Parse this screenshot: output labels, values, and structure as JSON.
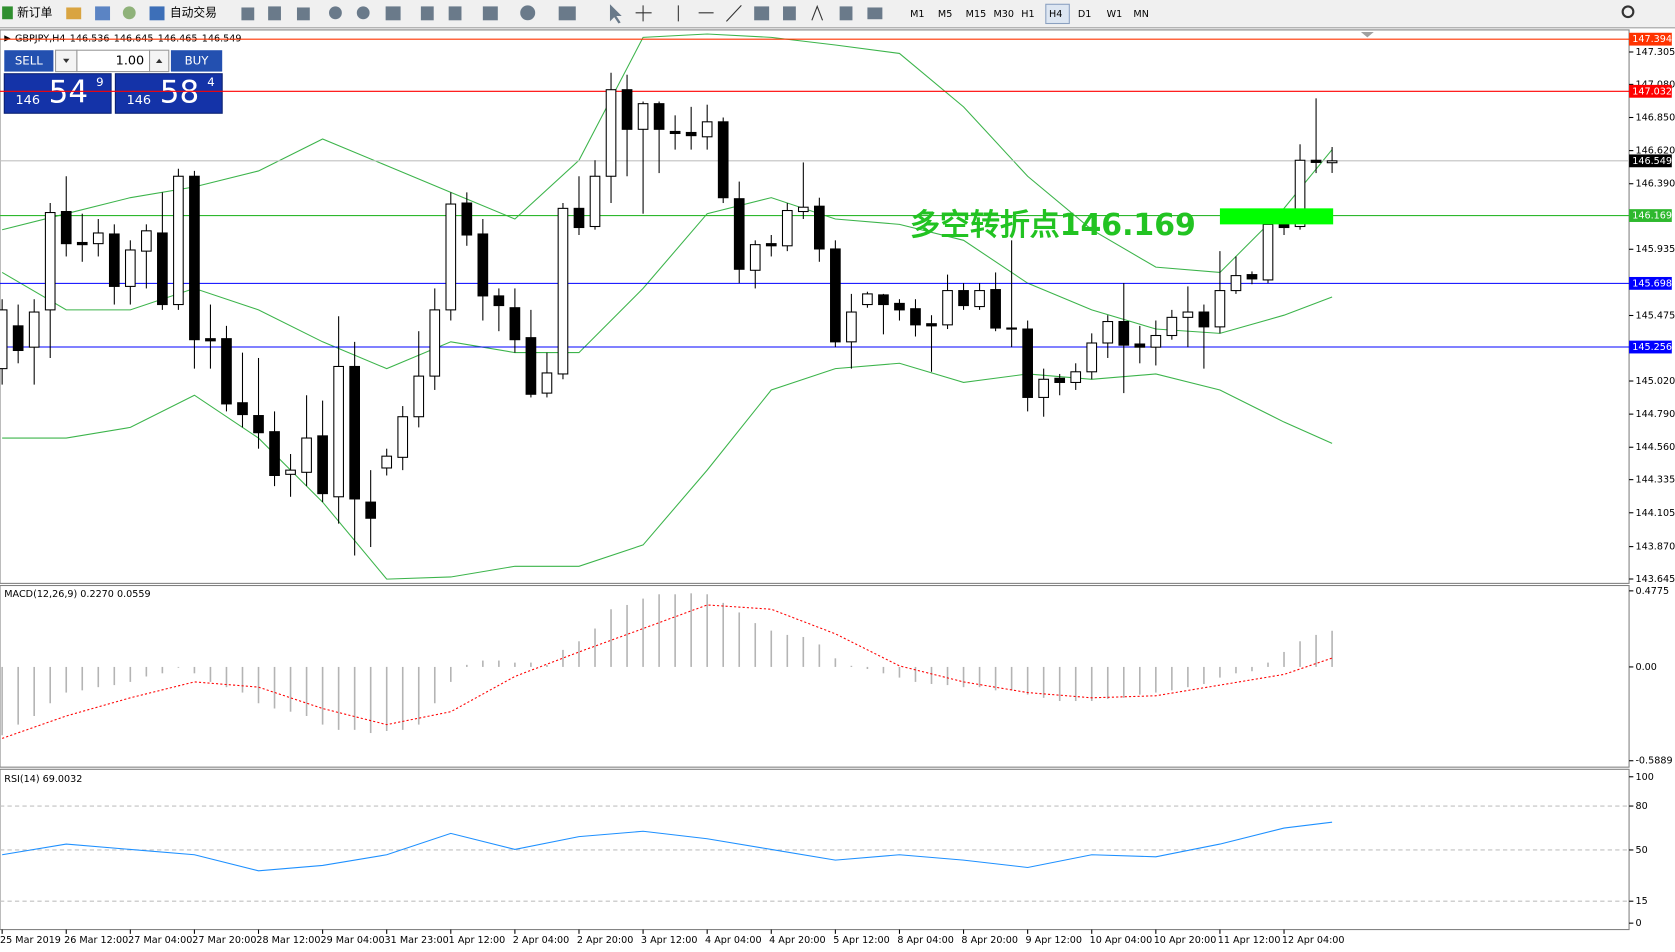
{
  "toolbar": {
    "new_order": "新订单",
    "autotrade": "自动交易",
    "timeframes": [
      "M1",
      "M5",
      "M15",
      "M30",
      "H1",
      "H4",
      "D1",
      "W1",
      "MN"
    ],
    "active_timeframe": "H4"
  },
  "trade_panel": {
    "sell": "SELL",
    "buy": "BUY",
    "lot": "1.00",
    "bid_big": "146",
    "bid_pips": "54",
    "bid_point": "9",
    "ask_big": "146",
    "ask_pips": "58",
    "ask_point": "4"
  },
  "chart_data": [
    {
      "type": "candlestick",
      "symbol": "GBPJPY,H4",
      "categories": [
        "25 Mar 2019",
        null,
        null,
        null,
        "26 Mar 12:00",
        null,
        null,
        null,
        "27 Mar 04:00",
        null,
        null,
        null,
        "27 Mar 20:00",
        null,
        null,
        null,
        "28 Mar 12:00",
        null,
        null,
        null,
        "29 Mar 04:00",
        null,
        null,
        null,
        "31 Mar 23:00",
        null,
        null,
        null,
        "1 Apr 12:00",
        null,
        null,
        null,
        "2 Apr 04:00",
        null,
        null,
        null,
        "2 Apr 20:00",
        null,
        null,
        null,
        "3 Apr 12:00",
        null,
        null,
        null,
        "4 Apr 04:00",
        null,
        null,
        null,
        "4 Apr 20:00",
        null,
        null,
        null,
        "5 Apr 12:00",
        null,
        null,
        null,
        "8 Apr 04:00",
        null,
        null,
        null,
        "8 Apr 20:00",
        null,
        null,
        null,
        "9 Apr 12:00",
        null,
        null,
        null,
        "10 Apr 04:00",
        null,
        null,
        null,
        "10 Apr 20:00",
        null,
        null,
        null,
        "11 Apr 12:00",
        null,
        null,
        null,
        "12 Apr 04:00",
        null,
        null,
        null
      ],
      "open": [
        145.106,
        145.403,
        145.255,
        145.514,
        146.197,
        145.982,
        145.974,
        146.041,
        145.677,
        145.922,
        146.048,
        145.551,
        146.442,
        145.314,
        145.314,
        144.869,
        144.78,
        144.668,
        144.372,
        144.386,
        144.639,
        144.216,
        145.121,
        144.179,
        144.416,
        144.49,
        144.772,
        145.054,
        145.514,
        146.256,
        146.041,
        145.611,
        145.529,
        145.321,
        144.936,
        145.069,
        146.219,
        146.093,
        146.442,
        147.043,
        146.768,
        146.946,
        146.753,
        146.746,
        146.716,
        146.82,
        146.286,
        145.789,
        145.974,
        145.959,
        146.197,
        146.234,
        145.937,
        145.292,
        145.551,
        145.618,
        145.559,
        145.522,
        145.418,
        145.41,
        145.648,
        145.537,
        145.655,
        145.388,
        145.381,
        144.906,
        145.039,
        145.01,
        145.084,
        145.284,
        145.433,
        145.277,
        145.255,
        145.336,
        145.462,
        145.499,
        145.396,
        145.648,
        145.759,
        145.722,
        146.108,
        146.093,
        146.553,
        146.536
      ],
      "high": [
        145.588,
        145.551,
        145.588,
        146.256,
        146.442,
        146.182,
        146.145,
        146.108,
        145.997,
        146.108,
        146.33,
        146.494,
        146.479,
        145.551,
        145.403,
        145.217,
        145.18,
        144.809,
        144.513,
        144.921,
        144.884,
        145.47,
        145.292,
        144.401,
        144.55,
        144.846,
        145.366,
        145.663,
        146.33,
        146.33,
        146.145,
        145.663,
        145.663,
        145.514,
        145.217,
        146.256,
        146.442,
        146.553,
        147.161,
        147.147,
        146.961,
        146.961,
        146.865,
        146.924,
        146.939,
        146.85,
        146.405,
        145.997,
        146.034,
        146.256,
        146.538,
        146.293,
        145.997,
        145.625,
        145.64,
        145.625,
        145.588,
        145.588,
        145.477,
        145.759,
        145.7,
        145.7,
        145.774,
        145.997,
        145.44,
        145.106,
        145.069,
        145.143,
        145.351,
        145.477,
        145.7,
        145.403,
        145.44,
        145.514,
        145.677,
        145.551,
        145.922,
        145.885,
        145.781,
        146.145,
        146.145,
        146.664,
        146.983,
        146.645
      ],
      "low": [
        144.995,
        145.143,
        144.995,
        145.18,
        145.885,
        145.848,
        145.885,
        145.551,
        145.551,
        145.663,
        145.514,
        145.514,
        145.106,
        145.106,
        144.809,
        144.698,
        144.55,
        144.29,
        144.216,
        144.29,
        144.179,
        144.03,
        143.808,
        143.867,
        144.364,
        144.401,
        144.698,
        144.958,
        145.44,
        145.959,
        145.44,
        145.366,
        145.217,
        144.906,
        144.906,
        145.032,
        146.034,
        146.071,
        146.256,
        146.442,
        146.182,
        146.464,
        146.627,
        146.627,
        146.627,
        146.256,
        145.7,
        145.663,
        145.885,
        145.922,
        146.145,
        145.848,
        145.255,
        145.106,
        145.529,
        145.344,
        145.44,
        145.329,
        145.084,
        145.381,
        145.514,
        145.514,
        145.366,
        145.255,
        144.809,
        144.772,
        144.921,
        144.958,
        145.032,
        145.18,
        144.936,
        145.143,
        145.128,
        145.307,
        145.255,
        145.106,
        145.351,
        145.625,
        145.692,
        145.7,
        146.034,
        146.071,
        146.464,
        146.465
      ],
      "close": [
        145.514,
        145.232,
        145.499,
        146.19,
        145.974,
        145.967,
        146.048,
        145.677,
        145.93,
        146.063,
        145.551,
        146.442,
        145.307,
        145.299,
        144.861,
        144.787,
        144.661,
        144.364,
        144.401,
        144.624,
        144.238,
        145.121,
        144.201,
        144.067,
        144.498,
        144.772,
        145.054,
        145.514,
        146.249,
        146.034,
        145.611,
        145.544,
        145.307,
        144.928,
        145.076,
        146.219,
        146.086,
        146.442,
        147.043,
        146.768,
        146.946,
        146.768,
        146.739,
        146.724,
        146.82,
        146.293,
        145.796,
        145.967,
        145.959,
        146.204,
        146.227,
        145.937,
        145.292,
        145.499,
        145.625,
        145.551,
        145.514,
        145.41,
        145.403,
        145.648,
        145.544,
        145.648,
        145.388,
        145.381,
        144.906,
        145.032,
        145.01,
        145.084,
        145.284,
        145.433,
        145.269,
        145.255,
        145.336,
        145.462,
        145.499,
        145.396,
        145.648,
        145.752,
        145.729,
        146.108,
        146.086,
        146.553,
        146.538,
        146.549
      ],
      "bull_color": "#ffffff",
      "bear_color": "#000000",
      "wick_color": "#000000",
      "ylim": [
        143.622,
        147.436
      ],
      "yticks": [
        {
          "value": 147.305,
          "label": "147.305"
        },
        {
          "value": 147.08,
          "label": "147.080"
        },
        {
          "value": 146.85,
          "label": "146.850"
        },
        {
          "value": 146.62,
          "label": "146.620"
        },
        {
          "value": 146.39,
          "label": "146.390"
        },
        {
          "value": 145.935,
          "label": "145.935"
        },
        {
          "value": 145.475,
          "label": "145.475"
        },
        {
          "value": 145.02,
          "label": "145.020"
        },
        {
          "value": 144.79,
          "label": "144.790"
        },
        {
          "value": 144.56,
          "label": "144.560"
        },
        {
          "value": 144.335,
          "label": "144.335"
        },
        {
          "value": 144.105,
          "label": "144.105"
        },
        {
          "value": 143.87,
          "label": "143.870"
        },
        {
          "value": 143.645,
          "label": "143.645"
        }
      ],
      "overlay_x": [
        0,
        4,
        8,
        12,
        16,
        20,
        24,
        28,
        32,
        36,
        40,
        44,
        48,
        52,
        56,
        60,
        64,
        68,
        72,
        76,
        80,
        83
      ],
      "bands": [
        {
          "color": "#3cb44b",
          "values": [
            146.071,
            146.182,
            146.293,
            146.368,
            146.479,
            146.701,
            146.516,
            146.33,
            146.145,
            146.553,
            147.406,
            147.43,
            147.406,
            147.354,
            147.295,
            146.924,
            146.442,
            146.071,
            145.811,
            145.774,
            146.219,
            146.627
          ]
        },
        {
          "color": "#3cb44b",
          "values": [
            145.774,
            145.514,
            145.514,
            145.663,
            145.514,
            145.292,
            145.106,
            145.292,
            145.217,
            145.217,
            145.663,
            146.182,
            146.293,
            146.145,
            146.108,
            145.997,
            145.7,
            145.514,
            145.381,
            145.351,
            145.477,
            145.603
          ]
        },
        {
          "color": "#3cb44b",
          "values": [
            144.624,
            144.624,
            144.698,
            144.921,
            144.624,
            144.179,
            143.644,
            143.659,
            143.733,
            143.733,
            143.882,
            144.401,
            144.958,
            145.106,
            145.143,
            145.01,
            145.069,
            145.032,
            145.069,
            144.958,
            144.735,
            144.587
          ]
        }
      ],
      "levels": [
        {
          "value": 147.394,
          "color": "#ff3300",
          "label_color": "#ffffff"
        },
        {
          "value": 147.032,
          "color": "#ff0000",
          "label_color": "#ffffff"
        },
        {
          "value": 146.549,
          "color": "#c0c0c0",
          "label_color": "#000000"
        },
        {
          "value": 146.169,
          "color": "#2eb82e",
          "label_color": "#ffffff"
        },
        {
          "value": 145.698,
          "color": "#0000ff",
          "label_color": "#ffffff"
        },
        {
          "value": 145.256,
          "color": "#0000ff",
          "label_color": "#ffffff"
        }
      ],
      "annotation": "多空转折点146.169"
    },
    {
      "type": "macd",
      "label": "MACD(12,26,9) 0.2270 0.0559",
      "ylim": [
        -0.5889,
        0.4775
      ],
      "yticks": [
        0.4775,
        {
          "value": 0,
          "label": "0.00"
        },
        -0.5889
      ],
      "histogram": {
        "color": "#b4b4b4",
        "values": [
          -0.429,
          -0.362,
          -0.308,
          -0.228,
          -0.161,
          -0.147,
          -0.127,
          -0.114,
          -0.094,
          -0.06,
          -0.04,
          -0.005,
          -0.04,
          -0.094,
          -0.127,
          -0.161,
          -0.228,
          -0.261,
          -0.281,
          -0.308,
          -0.362,
          -0.395,
          -0.395,
          -0.415,
          -0.402,
          -0.395,
          -0.362,
          -0.228,
          -0.094,
          0.013,
          0.04,
          0.04,
          0.027,
          0.027,
          0.013,
          0.107,
          0.161,
          0.241,
          0.362,
          0.389,
          0.429,
          0.456,
          0.456,
          0.462,
          0.456,
          0.402,
          0.342,
          0.275,
          0.228,
          0.201,
          0.188,
          0.141,
          0.054,
          0.007,
          -0.013,
          -0.04,
          -0.067,
          -0.094,
          -0.107,
          -0.114,
          -0.127,
          -0.127,
          -0.147,
          -0.147,
          -0.174,
          -0.194,
          -0.214,
          -0.214,
          -0.214,
          -0.201,
          -0.194,
          -0.174,
          -0.161,
          -0.147,
          -0.127,
          -0.107,
          -0.067,
          -0.04,
          -0.027,
          0.027,
          0.094,
          0.161,
          0.201,
          0.227
        ]
      },
      "signal": {
        "color": "#ff0000",
        "x": [
          0,
          4,
          8,
          12,
          16,
          20,
          24,
          28,
          32,
          36,
          40,
          44,
          48,
          52,
          56,
          60,
          64,
          68,
          72,
          76,
          80,
          83
        ],
        "values": [
          -0.449,
          -0.308,
          -0.194,
          -0.094,
          -0.127,
          -0.261,
          -0.362,
          -0.281,
          -0.06,
          0.094,
          0.241,
          0.389,
          0.362,
          0.208,
          0.007,
          -0.094,
          -0.161,
          -0.194,
          -0.181,
          -0.114,
          -0.047,
          0.0559
        ]
      }
    },
    {
      "type": "line",
      "label": "RSI(14) 69.0032",
      "ylim": [
        0,
        100
      ],
      "yticks": [
        100,
        80,
        50,
        15,
        0
      ],
      "levels": [
        80,
        50,
        15
      ],
      "level_color": "#c0c0c0",
      "series": [
        {
          "color": "#1e90ff",
          "x": [
            0,
            4,
            8,
            12,
            16,
            20,
            24,
            28,
            32,
            36,
            40,
            44,
            48,
            52,
            56,
            60,
            64,
            68,
            72,
            76,
            80,
            83
          ],
          "values": [
            46.7,
            54.0,
            50.4,
            46.7,
            35.8,
            39.4,
            46.7,
            61.3,
            50.4,
            59.1,
            62.8,
            57.7,
            50.4,
            43.1,
            46.7,
            43.1,
            38.0,
            46.7,
            45.3,
            54.0,
            65.0,
            69.0032
          ]
        }
      ]
    }
  ]
}
